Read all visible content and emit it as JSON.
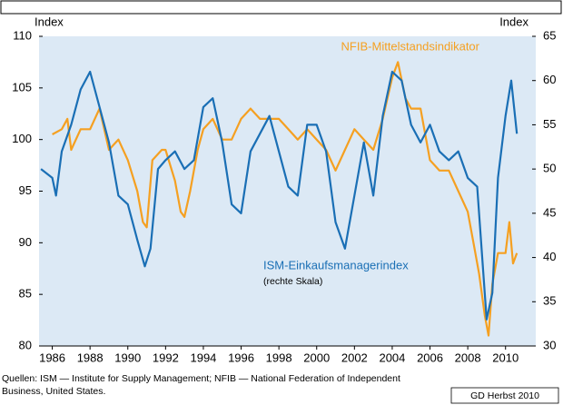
{
  "chart_data": {
    "type": "line",
    "y_label": "Index",
    "y2_label": "Index",
    "xlim": [
      1985.3,
      2011.6
    ],
    "xticks": [
      1986,
      1988,
      1990,
      1992,
      1994,
      1996,
      1998,
      2000,
      2002,
      2004,
      2006,
      2008,
      2010
    ],
    "ylim": [
      80,
      110
    ],
    "yticks": [
      80,
      85,
      90,
      95,
      100,
      105,
      110
    ],
    "y2lim": [
      30,
      65
    ],
    "y2ticks": [
      30,
      35,
      40,
      45,
      50,
      55,
      60,
      65
    ],
    "grid": false,
    "series": [
      {
        "name": "NFIB-Mittelstandsindikator",
        "color": "#f5a021",
        "axis": "y",
        "x": [
          1986,
          1986.5,
          1986.8,
          1987,
          1987.5,
          1988,
          1988.5,
          1989,
          1989.5,
          1990,
          1990.5,
          1990.8,
          1991,
          1991.3,
          1991.8,
          1992,
          1992.5,
          1992.8,
          1993,
          1993.3,
          1993.7,
          1994,
          1994.5,
          1995,
          1995.5,
          1996,
          1996.5,
          1997,
          1997.5,
          1998,
          1998.5,
          1999,
          1999.5,
          2000,
          2000.5,
          2001,
          2001.5,
          2002,
          2002.5,
          2003,
          2003.5,
          2004,
          2004.3,
          2004.7,
          2005,
          2005.5,
          2006,
          2006.5,
          2007,
          2007.5,
          2008,
          2008.3,
          2008.6,
          2008.9,
          2009.1,
          2009.3,
          2009.6,
          2010,
          2010.2,
          2010.4,
          2010.6
        ],
        "values": [
          100.5,
          101,
          102,
          99,
          101,
          101,
          103,
          99,
          100,
          98,
          95,
          92,
          91.5,
          98,
          99,
          99,
          96,
          93,
          92.5,
          95,
          99,
          101,
          102,
          100,
          100,
          102,
          103,
          102,
          102,
          102,
          101,
          100,
          101,
          100,
          99,
          97,
          99,
          101,
          100,
          99,
          102,
          106,
          107.5,
          104,
          103,
          103,
          98,
          97,
          97,
          95,
          93,
          90,
          87,
          83,
          81,
          86,
          89,
          89,
          92,
          88,
          89
        ]
      },
      {
        "name": "ISM-Einkaufsmanagerindex",
        "color": "#1a6fb5",
        "axis": "y2",
        "x": [
          1985.4,
          1986,
          1986.2,
          1986.5,
          1987,
          1987.5,
          1988,
          1988.5,
          1989,
          1989.5,
          1990,
          1990.5,
          1990.9,
          1991.2,
          1991.6,
          1992,
          1992.5,
          1993,
          1993.5,
          1994,
          1994.5,
          1995,
          1995.5,
          1996,
          1996.5,
          1997,
          1997.5,
          1998,
          1998.5,
          1999,
          1999.5,
          2000,
          2000.5,
          2001,
          2001.5,
          2002,
          2002.5,
          2003,
          2003.5,
          2004,
          2004.5,
          2005,
          2005.5,
          2006,
          2006.5,
          2007,
          2007.5,
          2008,
          2008.5,
          2008.9,
          2009,
          2009.3,
          2009.6,
          2010,
          2010.3,
          2010.6
        ],
        "values": [
          50,
          49,
          47,
          52,
          55,
          59,
          61,
          57,
          53,
          47,
          46,
          42,
          39,
          41,
          50,
          51,
          52,
          50,
          51,
          57,
          58,
          53,
          46,
          45,
          52,
          54,
          56,
          52,
          48,
          47,
          55,
          55,
          52,
          44,
          41,
          47,
          53,
          47,
          56,
          61,
          60,
          55,
          53,
          55,
          52,
          51,
          52,
          49,
          48,
          36,
          33,
          36,
          49,
          56,
          60,
          54
        ]
      }
    ],
    "series_note": "(rechte Skala)",
    "source": "Quellen: ISM — Institute for Supply Management; NFIB — National Federation of Independent Business, United States.",
    "credit": "GD Herbst 2010"
  }
}
